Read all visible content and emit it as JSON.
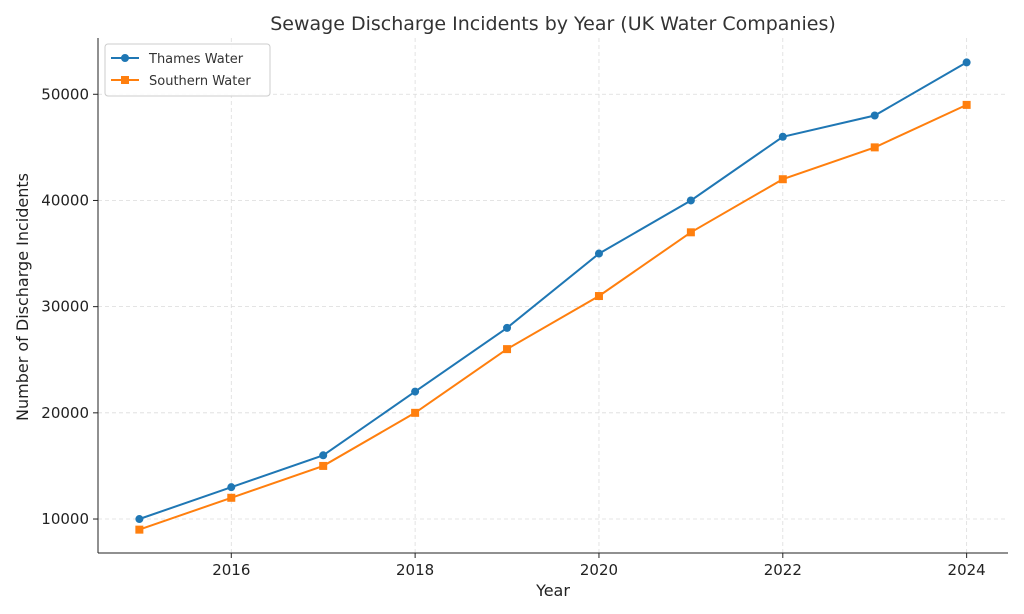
{
  "chart_data": {
    "type": "line",
    "title": "Sewage Discharge Incidents by Year (UK Water Companies)",
    "xlabel": "Year",
    "ylabel": "Number of Discharge Incidents",
    "x": [
      2015,
      2016,
      2017,
      2018,
      2019,
      2020,
      2021,
      2022,
      2023,
      2024
    ],
    "xticks": [
      2016,
      2018,
      2020,
      2022,
      2024
    ],
    "yticks": [
      10000,
      20000,
      30000,
      40000,
      50000
    ],
    "xlim": [
      2014.55,
      2024.45
    ],
    "ylim": [
      6800,
      55300
    ],
    "grid": true,
    "legend_position": "top-left",
    "series": [
      {
        "name": "Thames Water",
        "color": "#1f77b4",
        "marker": "circle",
        "values": [
          10000,
          13000,
          16000,
          22000,
          28000,
          35000,
          40000,
          46000,
          48000,
          53000
        ]
      },
      {
        "name": "Southern Water",
        "color": "#ff7f0e",
        "marker": "square",
        "values": [
          9000,
          12000,
          15000,
          20000,
          26000,
          31000,
          37000,
          42000,
          45000,
          49000
        ]
      }
    ]
  }
}
